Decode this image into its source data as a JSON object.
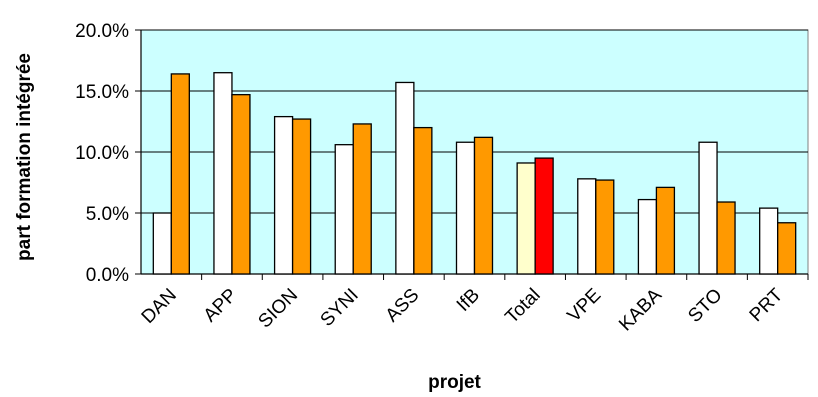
{
  "chart_data": {
    "type": "bar",
    "xlabel": "projet",
    "ylabel": "part formation intégrée",
    "ylim": [
      0,
      20
    ],
    "yticks": [
      "0.0%",
      "5.0%",
      "10.0%",
      "15.0%",
      "20.0%"
    ],
    "ytick_values": [
      0,
      5,
      10,
      15,
      20
    ],
    "grid": true,
    "legend": "none",
    "plot_background": "#ccffff",
    "categories": [
      "DAN",
      "APP",
      "SION",
      "SYNI",
      "ASS",
      "IfB",
      "Total",
      "VPE",
      "KABA",
      "STO",
      "PRT"
    ],
    "series": [
      {
        "values": [
          5.0,
          16.5,
          12.9,
          10.6,
          15.7,
          10.8,
          9.1,
          7.8,
          6.1,
          10.8,
          5.4
        ],
        "color": "#ffffff",
        "highlight": {
          "index": 6,
          "color": "#ffffcc"
        }
      },
      {
        "values": [
          16.4,
          14.7,
          12.7,
          12.3,
          12.0,
          11.2,
          9.5,
          7.7,
          7.1,
          5.9,
          4.2
        ],
        "color": "#ff9900",
        "highlight": {
          "index": 6,
          "color": "#ff0000"
        }
      }
    ]
  }
}
